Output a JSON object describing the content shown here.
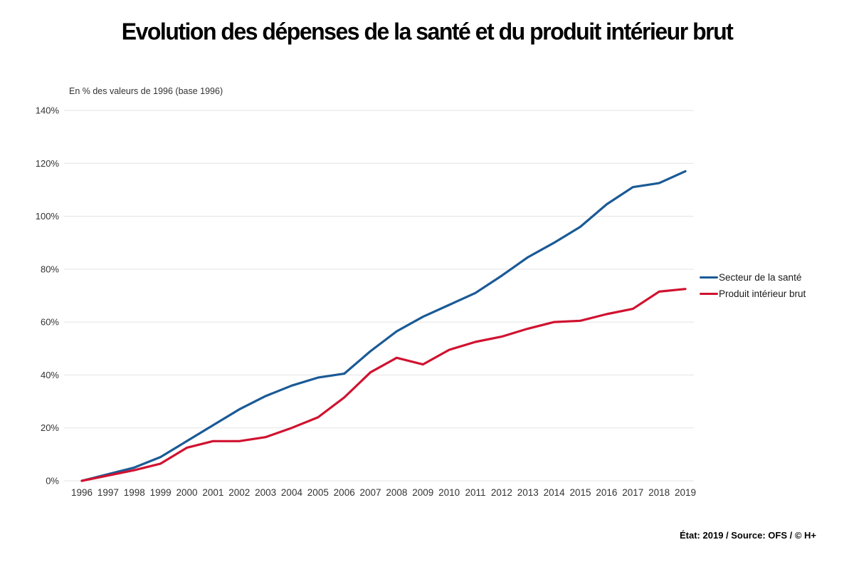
{
  "page": {
    "title": "Evolution des dépenses de la santé et du produit intérieur brut",
    "footer": "État: 2019 / Source: OFS / © H+"
  },
  "chart_data": {
    "type": "line",
    "title": "Evolution des dépenses de la santé et du produit intérieur brut",
    "axis_note": "En % des valeurs de 1996 (base 1996)",
    "x": [
      1996,
      1997,
      1998,
      1999,
      2000,
      2001,
      2002,
      2003,
      2004,
      2005,
      2006,
      2007,
      2008,
      2009,
      2010,
      2011,
      2012,
      2013,
      2014,
      2015,
      2016,
      2017,
      2018,
      2019
    ],
    "series": [
      {
        "name": "Secteur de la santé",
        "color": "#1a5a96",
        "values": [
          0,
          2.5,
          5,
          9,
          15,
          21,
          27,
          32,
          36,
          39,
          40.5,
          49,
          56.5,
          62,
          66.5,
          71,
          77.5,
          84.5,
          90,
          96,
          104.5,
          111,
          112.5,
          117
        ]
      },
      {
        "name": "Produit intérieur brut",
        "color": "#d0122f",
        "values": [
          0,
          2,
          4,
          6.5,
          12.5,
          15,
          15,
          16.5,
          20,
          24,
          31.5,
          41,
          46.5,
          44,
          49.5,
          52.5,
          54.5,
          57.5,
          60,
          60.5,
          63,
          65,
          71.5,
          72.5
        ]
      }
    ],
    "ylim": [
      0,
      140
    ],
    "ytick_step": 20,
    "ytick_suffix": "%",
    "grid": "horizontal",
    "gridline_color": "#e3e3e3",
    "tick_label_color": "#333333",
    "legend_position": "right-outside"
  }
}
